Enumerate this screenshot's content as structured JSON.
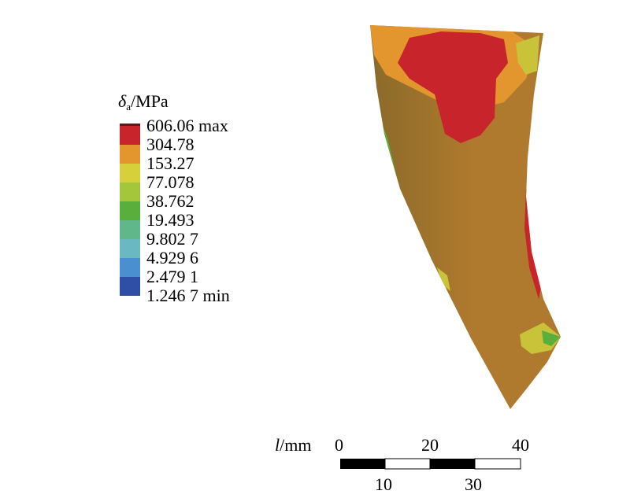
{
  "legend": {
    "symbol": "δ",
    "subscript": "a",
    "unit": "/MPa",
    "levels": [
      {
        "label": "606.06 max",
        "color": "#c8242b"
      },
      {
        "label": "304.78",
        "color": "#c8242b"
      },
      {
        "label": "153.27",
        "color": "#e3962e"
      },
      {
        "label": "77.078",
        "color": "#d6d13a"
      },
      {
        "label": "38.762",
        "color": "#a4c63b"
      },
      {
        "label": "19.493",
        "color": "#5aae3c"
      },
      {
        "label": "9.802 7",
        "color": "#5fb78a"
      },
      {
        "label": "4.929 6",
        "color": "#6ab8c2"
      },
      {
        "label": "2.479 1",
        "color": "#4a8fd0"
      },
      {
        "label": "1.246 7 min",
        "color": "#2f4fa6"
      }
    ],
    "min_color": "#2f4fa6",
    "top_color": "#5a1a1a"
  },
  "part": {
    "base_color": "#b07a2e",
    "shade_color": "#8a6a2a",
    "hot_color": "#c8242b",
    "warm_color": "#e3962e",
    "mid_color": "#c9c33a",
    "green_color": "#5aae3c"
  },
  "scalebar": {
    "unit_symbol": "l",
    "unit_suffix": "/mm",
    "top_labels": [
      "0",
      "20",
      "40"
    ],
    "bottom_labels": [
      "10",
      "30"
    ]
  }
}
